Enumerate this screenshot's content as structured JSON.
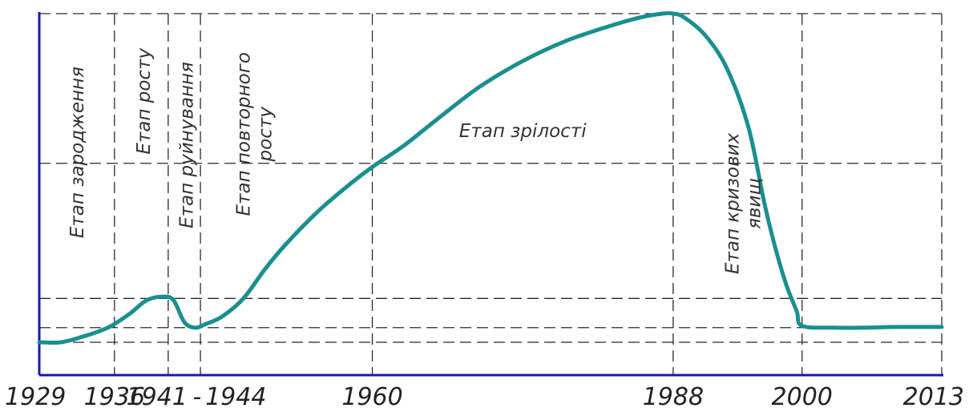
{
  "chart_data": {
    "type": "line",
    "title": "",
    "xlabel": "",
    "ylabel": "",
    "xlim": [
      1929,
      2013
    ],
    "ylim": [
      0,
      1
    ],
    "grid": true,
    "x_ticks": [
      "1929",
      "1936",
      "1941",
      "1944",
      "1960",
      "1988",
      "2000",
      "2013"
    ],
    "x_tick_values": [
      1929,
      1936,
      1941,
      1944,
      1960,
      1988,
      2000,
      2013
    ],
    "y_grid_values": [
      0.1,
      0.14,
      0.22,
      0.59,
      1.0
    ],
    "tick_separator": "-",
    "series": [
      {
        "color": "#1b8f8f",
        "x": [
          1929,
          1931,
          1933,
          1935,
          1936,
          1937.5,
          1939,
          1940.5,
          1941.5,
          1942.5,
          1943.5,
          1944.5,
          1946,
          1948,
          1950,
          1952,
          1955,
          1958,
          1960,
          1963,
          1966,
          1970,
          1974,
          1978,
          1982,
          1985,
          1987,
          1988,
          1989,
          1991,
          1993,
          1995,
          1996.5,
          1997.5,
          1998.5,
          1999.5,
          2000,
          2003,
          2006,
          2009,
          2013
        ],
        "y": [
          0.1,
          0.1,
          0.115,
          0.135,
          0.15,
          0.18,
          0.215,
          0.225,
          0.215,
          0.155,
          0.14,
          0.15,
          0.17,
          0.22,
          0.3,
          0.37,
          0.46,
          0.535,
          0.58,
          0.64,
          0.71,
          0.8,
          0.87,
          0.925,
          0.965,
          0.99,
          1.0,
          1.0,
          0.99,
          0.94,
          0.85,
          0.69,
          0.48,
          0.36,
          0.26,
          0.185,
          0.145,
          0.14,
          0.14,
          0.142,
          0.142
        ]
      }
    ],
    "annotations": [
      {
        "text": "Етап зародження",
        "x": 1932.5,
        "y": 0.62
      },
      {
        "text": "Етап росту",
        "x": 1938.7,
        "y": 0.76
      },
      {
        "text": "Етап руйнування",
        "x": 1942.7,
        "y": 0.64
      },
      {
        "text": "Етап повторного\nросту",
        "x": 1949,
        "y": 0.67
      },
      {
        "text": "Етап зрілості",
        "x": 1974,
        "y": 0.68
      },
      {
        "text": "Етап кризових\nявищ",
        "x": 1994.5,
        "y": 0.48
      }
    ]
  }
}
